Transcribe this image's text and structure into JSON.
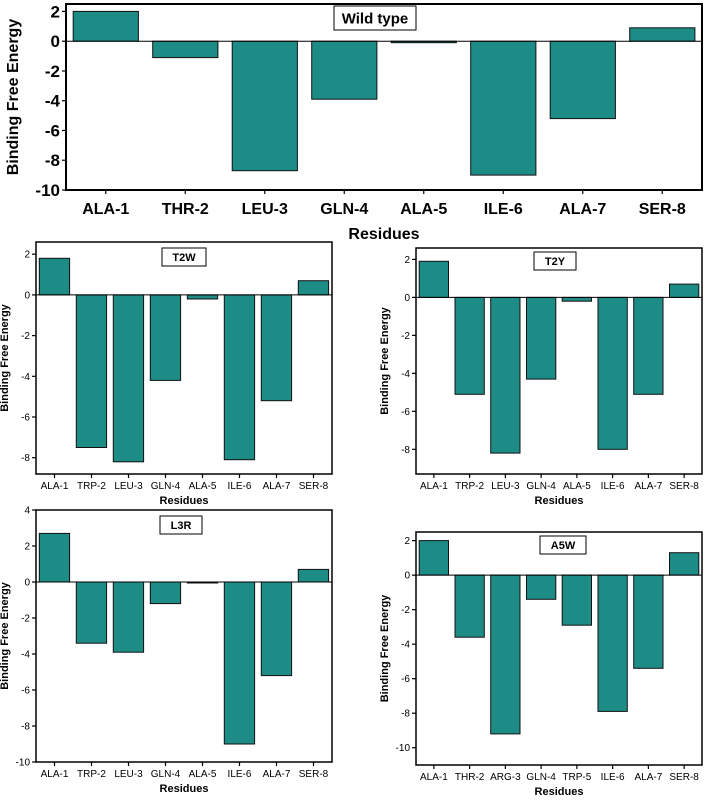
{
  "colors": {
    "bar": "#1e8c86",
    "bar_stroke": "#111111",
    "axis": "#000000",
    "background": "#ffffff"
  },
  "chart_data": [
    {
      "id": "wild-type",
      "type": "bar",
      "title": "Wild type",
      "xlabel": "Residues",
      "ylabel": "Binding Free Energy",
      "categories": [
        "ALA-1",
        "THR-2",
        "LEU-3",
        "GLN-4",
        "ALA-5",
        "ILE-6",
        "ALA-7",
        "SER-8"
      ],
      "values": [
        2.0,
        -1.1,
        -8.7,
        -3.9,
        -0.1,
        -9.0,
        -5.2,
        0.9
      ],
      "ylim": [
        -10,
        2.5
      ],
      "yticks": [
        "2",
        "0",
        "-2",
        "-4",
        "-6",
        "-8",
        "-10"
      ],
      "ytick_values": [
        2,
        0,
        -2,
        -4,
        -6,
        -8,
        -10
      ]
    },
    {
      "id": "t2w",
      "type": "bar",
      "title": "T2W",
      "xlabel": "Residues",
      "ylabel": "Binding Free Energy",
      "categories": [
        "ALA-1",
        "TRP-2",
        "LEU-3",
        "GLN-4",
        "ALA-5",
        "ILE-6",
        "ALA-7",
        "SER-8"
      ],
      "values": [
        1.8,
        -7.5,
        -8.2,
        -4.2,
        -0.2,
        -8.1,
        -5.2,
        0.7
      ],
      "ylim": [
        -8.8,
        2.6
      ],
      "yticks": [
        "2",
        "0",
        "-2",
        "-4",
        "-6",
        "-8"
      ],
      "ytick_values": [
        2,
        0,
        -2,
        -4,
        -6,
        -8
      ]
    },
    {
      "id": "t2y",
      "type": "bar",
      "title": "T2Y",
      "xlabel": "Residues",
      "ylabel": "Binding Free Energy",
      "categories": [
        "ALA-1",
        "TRP-2",
        "LEU-3",
        "GLN-4",
        "ALA-5",
        "ILE-6",
        "ALA-7",
        "SER-8"
      ],
      "values": [
        1.9,
        -5.1,
        -8.2,
        -4.3,
        -0.2,
        -8.0,
        -5.1,
        0.7
      ],
      "ylim": [
        -9.3,
        2.6
      ],
      "yticks": [
        "2",
        "0",
        "-2",
        "-4",
        "-6",
        "-8"
      ],
      "ytick_values": [
        2,
        0,
        -2,
        -4,
        -6,
        -8
      ]
    },
    {
      "id": "l3r",
      "type": "bar",
      "title": "L3R",
      "xlabel": "Residues",
      "ylabel": "Binding Free Energy",
      "categories": [
        "ALA-1",
        "TRP-2",
        "LEU-3",
        "GLN-4",
        "ALA-5",
        "ILE-6",
        "ALA-7",
        "SER-8"
      ],
      "values": [
        2.7,
        -3.4,
        -3.9,
        -1.2,
        0.0,
        -9.0,
        -5.2,
        0.7
      ],
      "ylim": [
        -10,
        4.0
      ],
      "yticks": [
        "4",
        "2",
        "0",
        "-2",
        "-4",
        "-6",
        "-8",
        "-10"
      ],
      "ytick_values": [
        4,
        2,
        0,
        -2,
        -4,
        -6,
        -8,
        -10
      ]
    },
    {
      "id": "a5w",
      "type": "bar",
      "title": "A5W",
      "xlabel": "Residues",
      "ylabel": "Binding Free Energy",
      "categories": [
        "ALA-1",
        "THR-2",
        "ARG-3",
        "GLN-4",
        "TRP-5",
        "ILE-6",
        "ALA-7",
        "SER-8"
      ],
      "values": [
        2.0,
        -3.6,
        -9.2,
        -1.4,
        -2.9,
        -7.9,
        -5.4,
        1.3
      ],
      "ylim": [
        -11,
        2.5
      ],
      "yticks": [
        "2",
        "0",
        "-2",
        "-4",
        "-6",
        "-8",
        "-10"
      ],
      "ytick_values": [
        2,
        0,
        -2,
        -4,
        -6,
        -8,
        -10
      ]
    }
  ]
}
